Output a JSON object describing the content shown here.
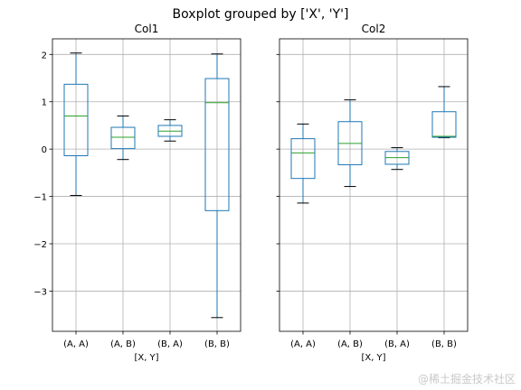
{
  "suptitle": "Boxplot grouped by ['X', 'Y']",
  "watermark": "@稀土掘金技术社区",
  "colors": {
    "box": "#1f77b4",
    "median": "#2ca02c",
    "whisker": "#000000",
    "grid": "#b0b0b0"
  },
  "chart_data": [
    {
      "type": "box",
      "title": "Col1",
      "xlabel": "[X, Y]",
      "ylabel": "",
      "ylim": [
        -3.85,
        2.33
      ],
      "yticks": [
        -3,
        -2,
        -1,
        0,
        1,
        2
      ],
      "ytick_labels": [
        "−3",
        "−2",
        "−1",
        "0",
        "1",
        "2"
      ],
      "grid": true,
      "categories": [
        "(A, A)",
        "(A, B)",
        "(B, A)",
        "(B, B)"
      ],
      "boxes": [
        {
          "whislo": -0.98,
          "q1": -0.14,
          "med": 0.7,
          "q3": 1.37,
          "whishi": 2.03
        },
        {
          "whislo": -0.22,
          "q1": 0.01,
          "med": 0.25,
          "q3": 0.46,
          "whishi": 0.7
        },
        {
          "whislo": 0.17,
          "q1": 0.27,
          "med": 0.38,
          "q3": 0.5,
          "whishi": 0.62
        },
        {
          "whislo": -3.56,
          "q1": -1.3,
          "med": 0.98,
          "q3": 1.49,
          "whishi": 2.01
        }
      ]
    },
    {
      "type": "box",
      "title": "Col2",
      "xlabel": "[X, Y]",
      "ylabel": "",
      "ylim": [
        -3.85,
        2.33
      ],
      "yticks": [
        -3,
        -2,
        -1,
        0,
        1,
        2
      ],
      "ytick_labels": [],
      "grid": true,
      "categories": [
        "(A, A)",
        "(A, B)",
        "(B, A)",
        "(B, B)"
      ],
      "boxes": [
        {
          "whislo": -1.14,
          "q1": -0.62,
          "med": -0.08,
          "q3": 0.22,
          "whishi": 0.53
        },
        {
          "whislo": -0.79,
          "q1": -0.33,
          "med": 0.12,
          "q3": 0.58,
          "whishi": 1.04
        },
        {
          "whislo": -0.43,
          "q1": -0.32,
          "med": -0.18,
          "q3": -0.05,
          "whishi": 0.03
        },
        {
          "whislo": 0.24,
          "q1": 0.25,
          "med": 0.27,
          "q3": 0.79,
          "whishi": 1.32
        }
      ]
    }
  ]
}
